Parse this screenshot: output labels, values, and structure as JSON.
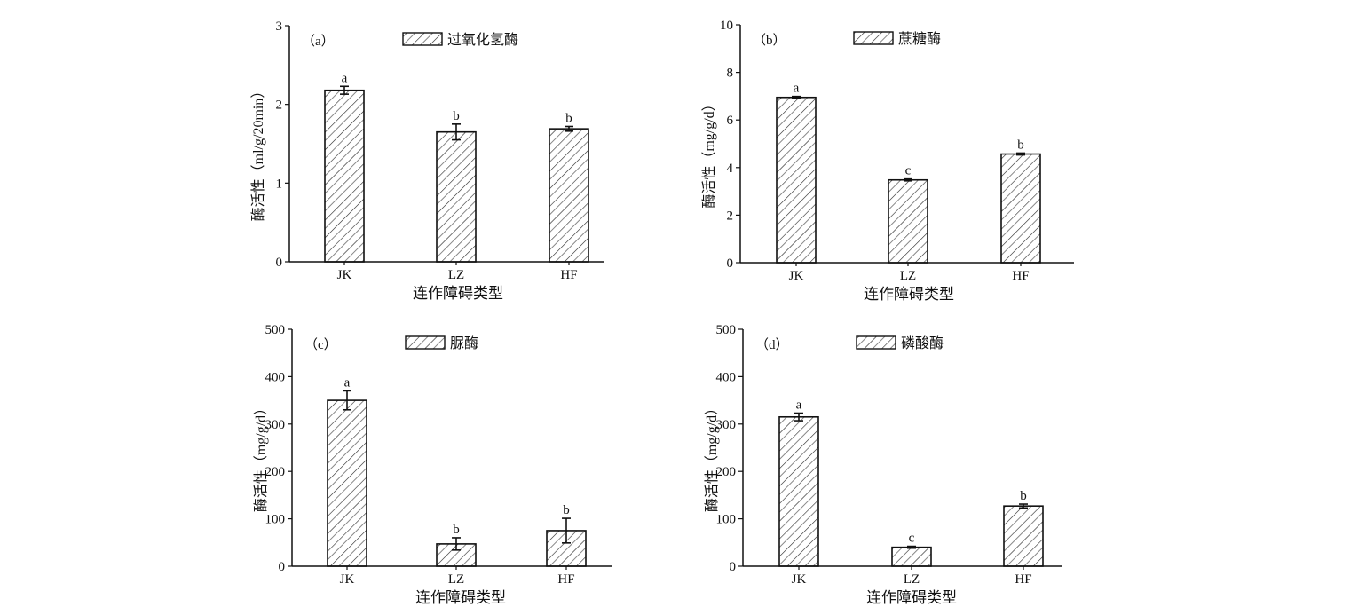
{
  "chart_data": [
    {
      "type": "bar",
      "panel_label": "（a）",
      "legend": "过氧化氢酶",
      "legend_placement": "top-center",
      "ylabel": "酶活性（ml/g/20min）",
      "xlabel": "连作障碍类型",
      "categories": [
        "JK",
        "LZ",
        "HF"
      ],
      "values": [
        2.18,
        1.65,
        1.69
      ],
      "errors": [
        0.05,
        0.1,
        0.03
      ],
      "letters": [
        "a",
        "b",
        "b"
      ],
      "ylim": [
        0,
        3
      ],
      "yticks": [
        "0",
        "1",
        "2",
        "3"
      ],
      "grid": false
    },
    {
      "type": "bar",
      "panel_label": "（b）",
      "legend": "蔗糖酶",
      "legend_placement": "top-center",
      "ylabel": "酶活性（mg/g/d）",
      "xlabel": "连作障碍类型",
      "categories": [
        "JK",
        "LZ",
        "HF"
      ],
      "values": [
        6.95,
        3.48,
        4.57
      ],
      "errors": [
        0.04,
        0.04,
        0.04
      ],
      "letters": [
        "a",
        "c",
        "b"
      ],
      "ylim": [
        0,
        10
      ],
      "yticks": [
        "0",
        "2",
        "4",
        "6",
        "8",
        "10"
      ],
      "grid": false
    },
    {
      "type": "bar",
      "panel_label": "（c）",
      "legend": "脲酶",
      "legend_placement": "top-center",
      "ylabel": "酶活性（mg/g/d）",
      "xlabel": "连作障碍类型",
      "categories": [
        "JK",
        "LZ",
        "HF"
      ],
      "values": [
        350,
        47,
        75
      ],
      "errors": [
        20,
        13,
        26
      ],
      "letters": [
        "a",
        "b",
        "b"
      ],
      "ylim": [
        0,
        500
      ],
      "yticks": [
        "0",
        "100",
        "200",
        "300",
        "400",
        "500"
      ],
      "grid": false
    },
    {
      "type": "bar",
      "panel_label": "（d）",
      "legend": "磷酸酶",
      "legend_placement": "top-center",
      "ylabel": "酶活性（mg/g/d）",
      "xlabel": "连作障碍类型",
      "categories": [
        "JK",
        "LZ",
        "HF"
      ],
      "values": [
        315,
        40,
        127
      ],
      "errors": [
        8,
        2,
        4
      ],
      "letters": [
        "a",
        "c",
        "b"
      ],
      "ylim": [
        0,
        500
      ],
      "yticks": [
        "0",
        "100",
        "200",
        "300",
        "400",
        "500"
      ],
      "grid": false
    }
  ]
}
